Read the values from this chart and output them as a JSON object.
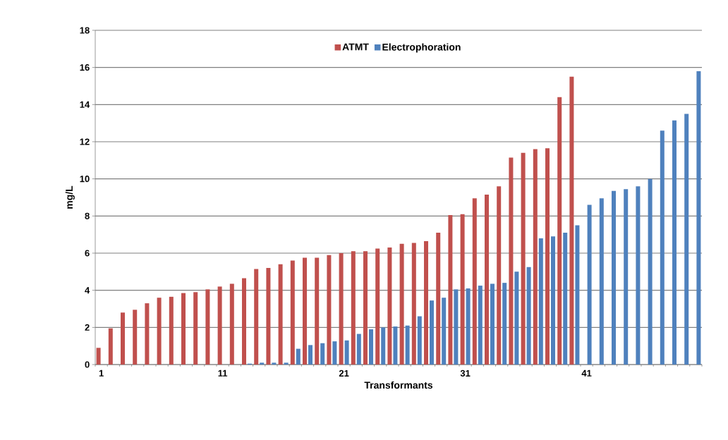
{
  "chart_data": {
    "type": "bar",
    "xlabel": "Transformants",
    "ylabel": "mg/L",
    "categories": [
      "1",
      null,
      null,
      null,
      null,
      null,
      null,
      null,
      null,
      null,
      "11",
      null,
      null,
      null,
      null,
      null,
      null,
      null,
      null,
      null,
      "21",
      null,
      null,
      null,
      null,
      null,
      null,
      null,
      null,
      null,
      "31",
      null,
      null,
      null,
      null,
      null,
      null,
      null,
      null,
      null,
      "41",
      null,
      null,
      null,
      null,
      null,
      null,
      null,
      null,
      null
    ],
    "series": [
      {
        "name": "ATMT",
        "color": "#c0504d",
        "values": [
          0.9,
          1.95,
          2.8,
          2.95,
          3.3,
          3.6,
          3.65,
          3.85,
          3.9,
          4.05,
          4.2,
          4.35,
          4.65,
          5.15,
          5.2,
          5.4,
          5.6,
          5.75,
          5.75,
          5.9,
          6.0,
          6.1,
          6.1,
          6.25,
          6.3,
          6.5,
          6.55,
          6.65,
          7.1,
          8.05,
          8.1,
          8.95,
          9.15,
          9.6,
          11.15,
          11.4,
          11.6,
          11.65,
          14.4,
          15.5,
          null,
          null,
          null,
          null,
          null,
          null,
          null,
          null,
          null,
          null
        ]
      },
      {
        "name": "Electrophoration",
        "color": "#4f81bd",
        "values": [
          0,
          0,
          0,
          0,
          0,
          0,
          0,
          0,
          0,
          0,
          0,
          0,
          0.05,
          0.1,
          0.1,
          0.1,
          0.85,
          1.05,
          1.15,
          1.25,
          1.3,
          1.65,
          1.9,
          2.0,
          2.05,
          2.1,
          2.6,
          3.45,
          3.6,
          4.05,
          4.1,
          4.25,
          4.35,
          4.4,
          5.0,
          5.25,
          6.8,
          6.9,
          7.1,
          7.5,
          8.6,
          8.95,
          9.35,
          9.45,
          9.6,
          10.0,
          12.6,
          13.15,
          13.5,
          15.8
        ]
      }
    ],
    "ylim": [
      0,
      18
    ],
    "yticks": [
      0,
      2,
      4,
      6,
      8,
      10,
      12,
      14,
      16,
      18
    ],
    "grid": "y",
    "legend": "top"
  }
}
